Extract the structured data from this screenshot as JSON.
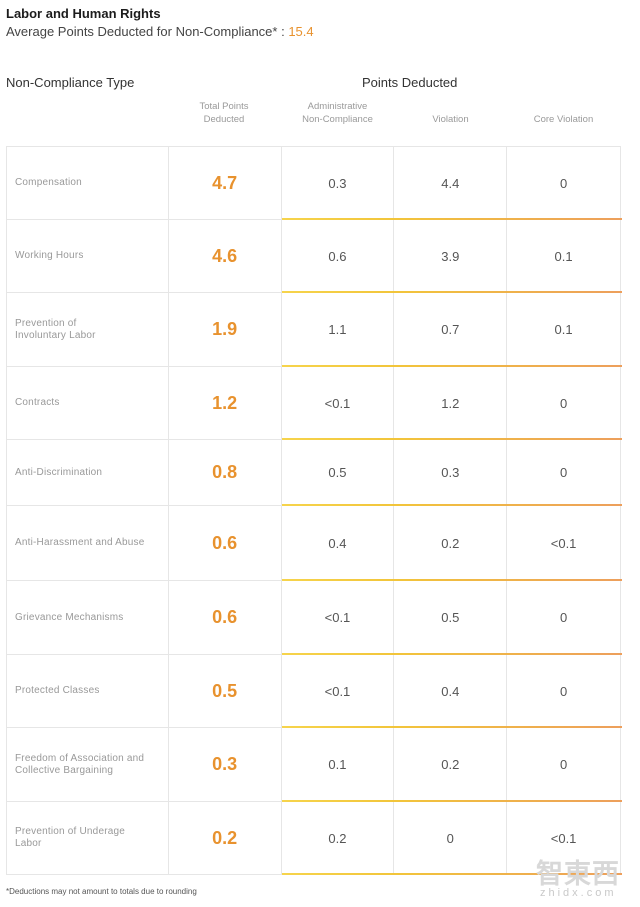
{
  "title": "Labor and Human Rights",
  "subtitle_label": "Average Points Deducted for Non-Compliance* : ",
  "subtitle_value": "15.4",
  "headers": {
    "type": "Non-Compliance Type",
    "points": "Points Deducted",
    "total": "Total Points Deducted",
    "admin": "Administrative Non-Compliance",
    "violation": "Violation",
    "core": "Core Violation"
  },
  "rows": [
    {
      "type": "Compensation",
      "total": "4.7",
      "admin": "0.3",
      "violation": "4.4",
      "core": "0"
    },
    {
      "type": "Working Hours",
      "total": "4.6",
      "admin": "0.6",
      "violation": "3.9",
      "core": "0.1"
    },
    {
      "type": "Prevention of Involuntary Labor",
      "total": "1.9",
      "admin": "1.1",
      "violation": "0.7",
      "core": "0.1"
    },
    {
      "type": "Contracts",
      "total": "1.2",
      "admin": "<0.1",
      "violation": "1.2",
      "core": "0"
    },
    {
      "type": "Anti-Discrimination",
      "total": "0.8",
      "admin": "0.5",
      "violation": "0.3",
      "core": "0"
    },
    {
      "type": "Anti-Harassment and Abuse",
      "total": "0.6",
      "admin": "0.4",
      "violation": "0.2",
      "core": "<0.1"
    },
    {
      "type": "Grievance Mechanisms",
      "total": "0.6",
      "admin": "<0.1",
      "violation": "0.5",
      "core": "0"
    },
    {
      "type": "Protected Classes",
      "total": "0.5",
      "admin": "<0.1",
      "violation": "0.4",
      "core": "0"
    },
    {
      "type": "Freedom of Association and Collective Bargaining",
      "total": "0.3",
      "admin": "0.1",
      "violation": "0.2",
      "core": "0"
    },
    {
      "type": "Prevention of Underage Labor",
      "total": "0.2",
      "admin": "0.2",
      "violation": "0",
      "core": "<0.1"
    }
  ],
  "footnote": "*Deductions may not amount to totals due to rounding",
  "watermark": {
    "logo": "智東西",
    "url": "zhidx.com"
  },
  "colors": {
    "accent": "#e8922e",
    "bar_yellow": "#f6d44c",
    "bar_orange": "#ed9f5c"
  }
}
